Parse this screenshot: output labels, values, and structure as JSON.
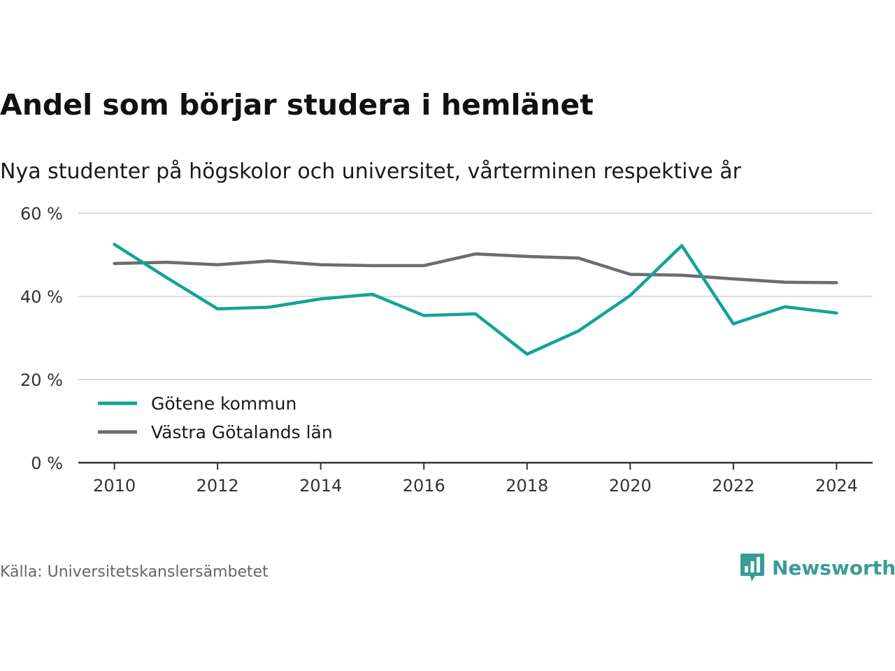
{
  "header": {
    "title": "Andel som börjar studera i hemlänet",
    "subtitle": "Nya studenter på högskolor och universitet, vårterminen respektive år"
  },
  "chart_data": {
    "type": "line",
    "x": [
      2010,
      2011,
      2012,
      2013,
      2014,
      2015,
      2016,
      2017,
      2018,
      2019,
      2020,
      2021,
      2022,
      2023,
      2024
    ],
    "x_ticks": [
      2010,
      2012,
      2014,
      2016,
      2018,
      2020,
      2022,
      2024
    ],
    "x_tick_labels": [
      "2010",
      "2012",
      "2014",
      "2016",
      "2018",
      "2020",
      "2022",
      "2024"
    ],
    "y_ticks": [
      0,
      20,
      40,
      60
    ],
    "y_tick_labels": [
      "0 %",
      "20 %",
      "40 %",
      "60 %"
    ],
    "ylim": [
      0,
      60
    ],
    "xlim": [
      2009.3,
      2024.7
    ],
    "grid": true,
    "legend_position": "bottom-left",
    "series": [
      {
        "name": "Götene kommun",
        "color": "#12a39a",
        "values": [
          52.5,
          44.6,
          37.0,
          37.4,
          39.4,
          40.5,
          35.4,
          35.8,
          26.1,
          31.7,
          40.2,
          52.2,
          33.4,
          37.5,
          36.0
        ]
      },
      {
        "name": "Västra Götalands län",
        "color": "#6d6c70",
        "values": [
          47.9,
          48.2,
          47.6,
          48.5,
          47.6,
          47.4,
          47.4,
          50.2,
          49.6,
          49.2,
          45.3,
          45.1,
          44.2,
          43.4,
          43.3
        ]
      }
    ]
  },
  "footer": {
    "source": "Källa: Universitetskanslersämbetet",
    "brand": "Newsworthy",
    "brand_color": "#3a9c95",
    "brand_icon": "bar-chart-speech-bubble-icon"
  }
}
